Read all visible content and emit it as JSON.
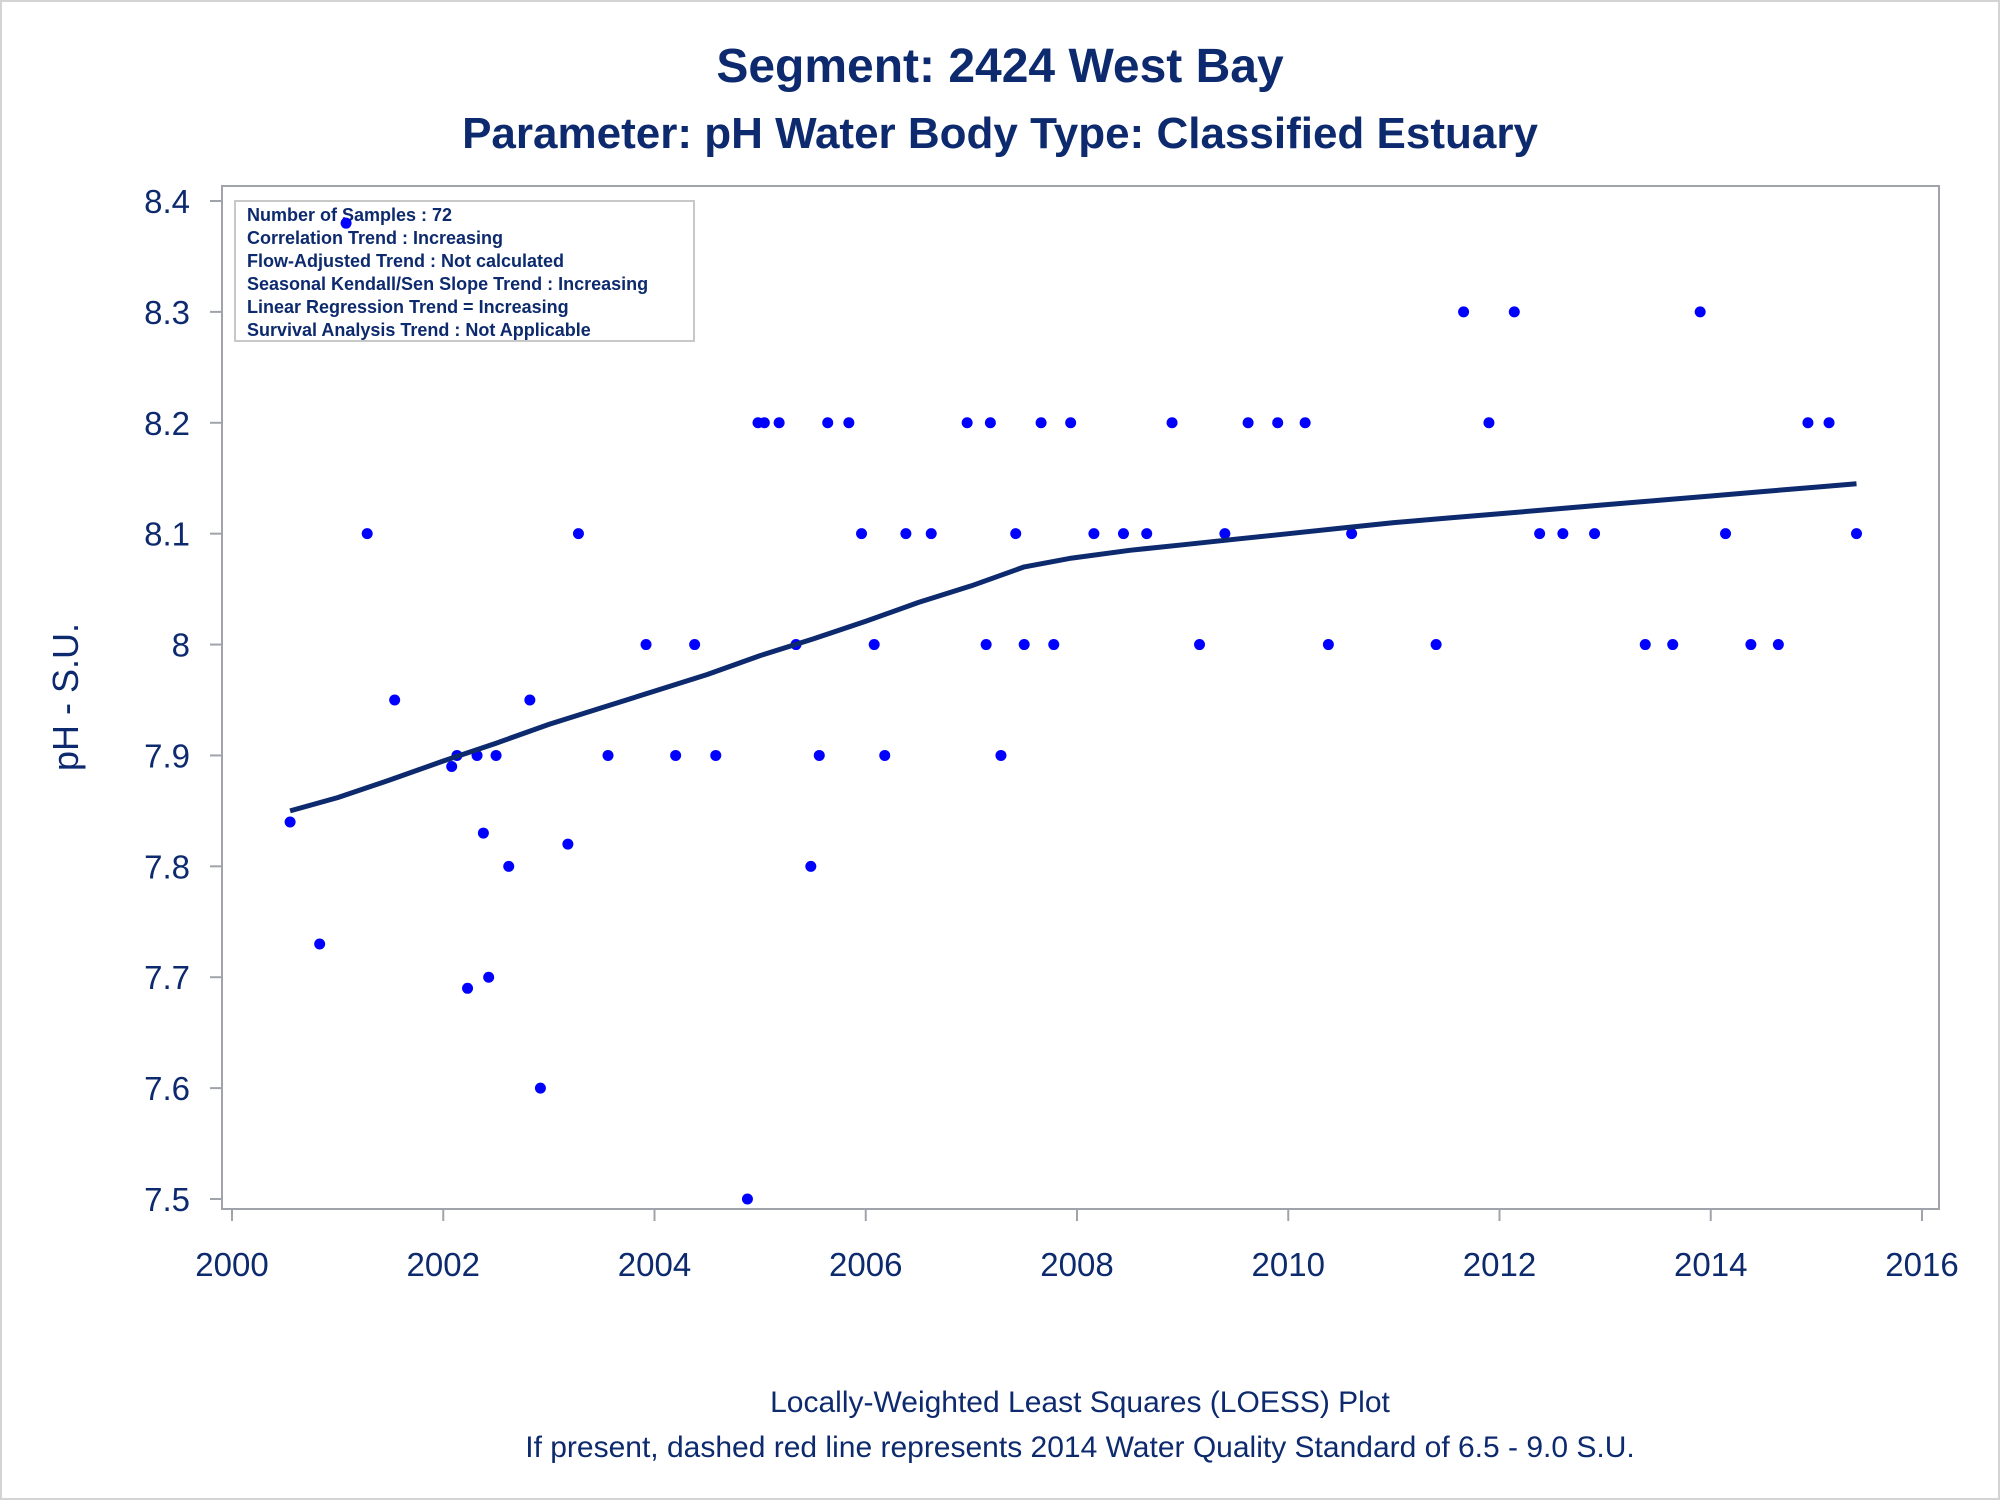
{
  "chart_data": {
    "type": "scatter",
    "title": "Segment: 2424  West Bay",
    "subtitle": "Parameter: pH   Water Body Type: Classified Estuary",
    "xlabel": "",
    "ylabel": "pH - S.U.",
    "xlim": [
      2000,
      2016
    ],
    "ylim": [
      7.5,
      8.4
    ],
    "x_ticks": [
      "2000",
      "2002",
      "2004",
      "2006",
      "2008",
      "2010",
      "2012",
      "2014",
      "2016"
    ],
    "y_ticks": [
      "7.5",
      "7.6",
      "7.7",
      "7.8",
      "7.9",
      "8",
      "8.1",
      "8.2",
      "8.3",
      "8.4"
    ],
    "grid": false,
    "stats_box": [
      "Number of Samples : 72",
      "Correlation Trend : Increasing",
      "Flow-Adjusted Trend : Not calculated",
      "Seasonal Kendall/Sen Slope Trend : Increasing",
      "Linear Regression Trend = Increasing",
      "Survival Analysis Trend : Not Applicable"
    ],
    "footnotes": [
      "Locally-Weighted Least Squares (LOESS) Plot",
      "If present, dashed red line represents 2014 Water Quality Standard of 6.5 - 9.0 S.U."
    ],
    "colors": {
      "points": "#0000ff",
      "line": "#0d2a6e",
      "text": "#0d2a6e",
      "frame": "#a0a4aa"
    },
    "points": {
      "x": [
        2000.55,
        2000.83,
        2001.08,
        2001.28,
        2001.54,
        2002.08,
        2002.13,
        2002.23,
        2002.32,
        2002.38,
        2002.43,
        2002.5,
        2002.62,
        2002.82,
        2002.92,
        2003.18,
        2003.28,
        2003.56,
        2003.92,
        2004.2,
        2004.38,
        2004.58,
        2004.88,
        2004.98,
        2005.04,
        2005.18,
        2005.34,
        2005.48,
        2005.56,
        2005.64,
        2005.84,
        2005.96,
        2006.08,
        2006.18,
        2006.38,
        2006.62,
        2006.96,
        2007.14,
        2007.18,
        2007.28,
        2007.42,
        2007.5,
        2007.66,
        2007.78,
        2007.94,
        2008.16,
        2008.44,
        2008.66,
        2008.9,
        2009.16,
        2009.4,
        2009.62,
        2009.9,
        2010.16,
        2010.38,
        2010.6,
        2011.4,
        2011.66,
        2011.9,
        2012.14,
        2012.38,
        2012.6,
        2012.9,
        2013.38,
        2013.64,
        2013.9,
        2014.14,
        2014.38,
        2014.64,
        2014.92,
        2015.12,
        2015.38
      ],
      "y": [
        7.84,
        7.73,
        8.38,
        8.1,
        7.95,
        7.89,
        7.9,
        7.69,
        7.9,
        7.83,
        7.7,
        7.9,
        7.8,
        7.95,
        7.6,
        7.82,
        8.1,
        7.9,
        8.0,
        7.9,
        8.0,
        7.9,
        7.5,
        8.2,
        8.2,
        8.2,
        8.0,
        7.8,
        7.9,
        8.2,
        8.2,
        8.1,
        8.0,
        7.9,
        8.1,
        8.1,
        8.2,
        8.0,
        8.2,
        7.9,
        8.1,
        8.0,
        8.2,
        8.0,
        8.2,
        8.1,
        8.1,
        8.1,
        8.2,
        8.0,
        8.1,
        8.2,
        8.2,
        8.2,
        8.0,
        8.1,
        8.0,
        8.3,
        8.2,
        8.3,
        8.1,
        8.1,
        8.1,
        8.0,
        8.0,
        8.3,
        8.1,
        8.0,
        8.0,
        8.2,
        8.2,
        8.1
      ]
    },
    "loess": {
      "x": [
        2000.55,
        2001.0,
        2001.5,
        2002.0,
        2002.5,
        2003.0,
        2003.5,
        2004.0,
        2004.5,
        2005.0,
        2005.5,
        2006.0,
        2006.5,
        2007.0,
        2007.5,
        2007.95,
        2008.5,
        2009.0,
        2009.5,
        2010.0,
        2010.5,
        2011.0,
        2011.5,
        2012.0,
        2012.5,
        2013.0,
        2013.5,
        2014.0,
        2014.5,
        2015.0,
        2015.38
      ],
      "y": [
        7.85,
        7.862,
        7.878,
        7.895,
        7.911,
        7.928,
        7.943,
        7.958,
        7.973,
        7.99,
        8.005,
        8.021,
        8.038,
        8.053,
        8.07,
        8.078,
        8.085,
        8.09,
        8.095,
        8.1,
        8.105,
        8.11,
        8.114,
        8.118,
        8.122,
        8.126,
        8.13,
        8.134,
        8.138,
        8.142,
        8.145
      ]
    }
  }
}
